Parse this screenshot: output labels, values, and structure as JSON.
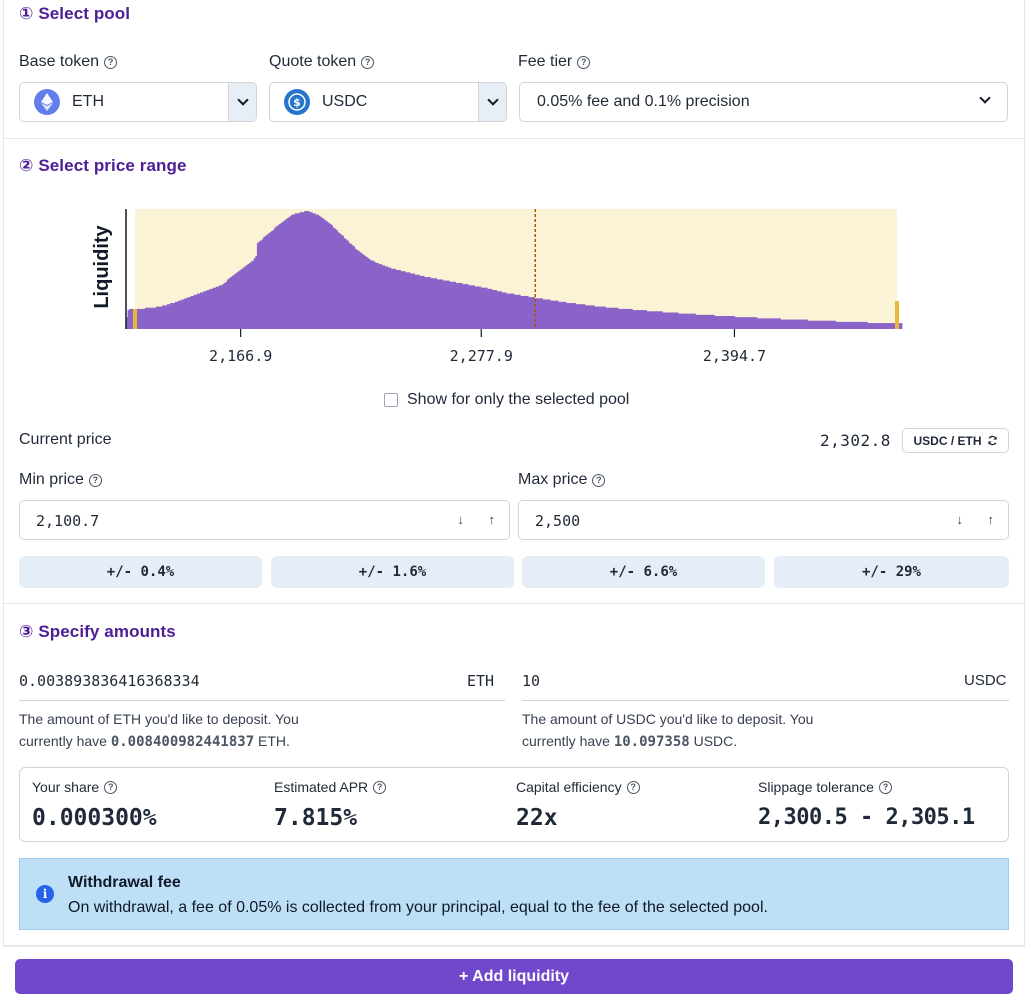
{
  "colors": {
    "accent": "#7148cc",
    "section_title": "#4c1d95",
    "bar_fill": "#8a63c8",
    "range_band": "#fbf3d5",
    "range_edge": "#e7b93b",
    "info_bg": "#bde0f7",
    "pill_bg": "#e5edf7"
  },
  "section1": {
    "title": "① Select pool",
    "base_label": "Base token",
    "quote_label": "Quote token",
    "fee_label": "Fee tier",
    "base_value": "ETH",
    "base_icon": "ethereum-icon",
    "quote_value": "USDC",
    "quote_icon": "usdc-icon",
    "fee_value": "0.05% fee and 0.1% precision"
  },
  "section2": {
    "title": "② Select price range",
    "checkbox_label": "Show for only the selected pool",
    "current_price_label": "Current price",
    "current_price_value": "2,302.8",
    "unit_button": "USDC / ETH",
    "min_label": "Min price",
    "max_label": "Max price",
    "min_value": "2,100.7",
    "max_value": "2,500",
    "presets": [
      "+/- 0.4%",
      "+/- 1.6%",
      "+/- 6.6%",
      "+/- 29%"
    ]
  },
  "chart_data": {
    "type": "bar",
    "ylabel": "Liquidity",
    "x_ticks": [
      "2,166.9",
      "2,277.9",
      "2,394.7"
    ],
    "x_tick_values": [
      2166.9,
      2277.9,
      2394.7
    ],
    "xlim": [
      2114.0,
      2472.0
    ],
    "current_price": 2302.8,
    "range": [
      2100.7,
      2500
    ],
    "values": [
      10,
      16,
      17,
      17,
      17,
      17,
      17,
      17,
      17,
      17,
      17,
      17,
      18,
      18,
      18,
      18,
      18,
      18,
      18,
      19,
      19,
      19,
      19,
      20,
      20,
      20,
      21,
      21,
      22,
      22,
      22,
      23,
      23,
      24,
      24,
      25,
      25,
      26,
      26,
      27,
      27,
      28,
      28,
      29,
      29,
      30,
      30,
      31,
      31,
      32,
      32,
      33,
      33,
      34,
      34,
      35,
      35,
      36,
      36,
      37,
      37,
      38,
      39,
      40,
      42,
      43,
      44,
      45,
      46,
      47,
      48,
      49,
      50,
      51,
      52,
      53,
      54,
      55,
      56,
      57,
      58,
      60,
      62,
      73,
      74,
      75,
      76,
      78,
      79,
      80,
      81,
      82,
      83,
      84,
      86,
      87,
      88,
      89,
      90,
      91,
      92,
      93,
      94,
      95,
      96,
      97,
      97,
      98,
      98,
      98,
      99,
      99,
      99,
      100,
      100,
      100,
      99,
      99,
      98,
      98,
      97,
      97,
      96,
      95,
      94,
      93,
      92,
      91,
      90,
      89,
      88,
      86,
      85,
      84,
      82,
      81,
      80,
      79,
      77,
      76,
      75,
      73,
      72,
      71,
      70,
      68,
      67,
      66,
      65,
      64,
      63,
      62,
      61,
      60,
      59,
      58,
      58,
      57,
      56,
      56,
      55,
      55,
      54,
      54,
      53,
      53,
      52,
      52,
      51,
      51,
      51,
      50,
      50,
      50,
      49,
      49,
      49,
      48,
      48,
      48,
      47,
      47,
      47,
      46,
      46,
      46,
      45,
      45,
      45,
      44,
      44,
      44,
      44,
      43,
      43,
      43,
      43,
      42,
      42,
      42,
      42,
      41,
      41,
      41,
      41,
      40,
      40,
      40,
      40,
      39,
      39,
      39,
      39,
      38,
      38,
      38,
      38,
      37,
      37,
      37,
      37,
      36,
      36,
      36,
      36,
      35,
      35,
      35,
      35,
      34,
      34,
      34,
      33,
      33,
      33,
      32,
      32,
      32,
      31,
      31,
      31,
      30,
      30,
      30,
      30,
      30,
      29,
      29,
      29,
      29,
      28,
      28,
      28,
      28,
      28,
      27,
      27,
      27,
      27,
      26,
      26,
      26,
      26,
      26,
      25,
      25,
      25,
      25,
      25,
      24,
      24,
      24,
      24,
      24,
      23,
      23,
      23,
      23,
      23,
      22,
      22,
      22,
      22,
      22,
      22,
      21,
      21,
      21,
      21,
      21,
      21,
      20,
      20,
      20,
      20,
      20,
      20,
      19,
      19,
      19,
      19,
      19,
      19,
      19,
      18,
      18,
      18,
      18,
      18,
      18,
      18,
      18,
      17,
      17,
      17,
      17,
      17,
      17,
      17,
      17,
      17,
      16,
      16,
      16,
      16,
      16,
      16,
      16,
      16,
      16,
      15,
      15,
      15,
      15,
      15,
      15,
      15,
      15,
      15,
      15,
      14,
      14,
      14,
      14,
      14,
      14,
      14,
      14,
      14,
      14,
      13,
      13,
      13,
      13,
      13,
      13,
      13,
      13,
      13,
      13,
      13,
      12,
      12,
      12,
      12,
      12,
      12,
      12,
      12,
      12,
      12,
      12,
      12,
      11,
      11,
      11,
      11,
      11,
      11,
      11,
      11,
      11,
      11,
      11,
      11,
      11,
      10,
      10,
      10,
      10,
      10,
      10,
      10,
      10,
      10,
      10,
      10,
      10,
      10,
      10,
      9,
      9,
      9,
      9,
      9,
      9,
      9,
      9,
      9,
      9,
      9,
      9,
      9,
      9,
      9,
      8,
      8,
      8,
      8,
      8,
      8,
      8,
      8,
      8,
      8,
      8,
      8,
      8,
      8,
      8,
      8,
      8,
      7,
      7,
      7,
      7,
      7,
      7,
      7,
      7,
      7,
      7,
      7,
      7,
      7,
      7,
      7,
      7,
      7,
      7,
      6,
      6,
      6,
      6,
      6,
      6,
      6,
      6,
      6,
      6,
      6,
      6,
      6,
      6,
      6,
      6,
      6,
      6,
      6,
      6,
      5,
      5,
      5,
      5,
      5,
      5,
      5,
      5,
      5,
      5,
      5,
      5,
      5,
      5,
      5,
      5,
      5,
      5,
      5,
      5,
      5,
      5
    ]
  },
  "section3": {
    "title": "③ Specify amounts",
    "eth_amount": "0.003893836416368334",
    "eth_unit": "ETH",
    "usdc_amount": "10",
    "usdc_unit": "USDC",
    "eth_hint_prefix": "The amount of ETH you'd like to deposit. You currently have ",
    "eth_balance": "0.008400982441837",
    "eth_hint_suffix": " ETH.",
    "usdc_hint_prefix": "The amount of USDC you'd like to deposit. You currently have ",
    "usdc_balance": "10.097358",
    "usdc_hint_suffix": " USDC."
  },
  "stats": {
    "share_label": "Your share",
    "share_value": "0.000300%",
    "apr_label": "Estimated APR",
    "apr_value": "7.815%",
    "efficiency_label": "Capital efficiency",
    "efficiency_value": "22x",
    "slippage_label": "Slippage tolerance",
    "slippage_value": "2,300.5 - 2,305.1"
  },
  "alert": {
    "title": "Withdrawal fee",
    "body": "On withdrawal, a fee of 0.05% is collected from your principal, equal to the fee of the selected pool."
  },
  "action": {
    "add_label": "+ Add liquidity"
  }
}
